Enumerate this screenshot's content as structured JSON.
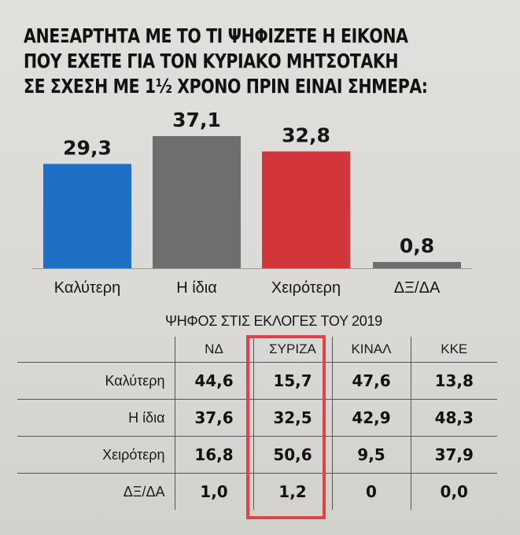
{
  "chart_data": [
    {
      "type": "bar",
      "title": "ΑΝΕΞΑΡΤΗΤΑ ΜΕ ΤΟ ΤΙ ΨΗΦΙΖΕΤΕ Η ΕΙΚΟΝΑ ΠΟΥ ΕΧΕΤΕ ΓΙΑ ΤΟΝ ΚΥΡΙΑΚΟ ΜΗΤΣΟΤΑΚΗ ΣΕ ΣΧΕΣΗ ΜΕ 1½ ΧΡΟΝΟ ΠΡΙΝ ΕΙΝΑΙ ΣΗΜΕΡΑ:",
      "title_lines": [
        "ΑΝΕΞΑΡΤΗΤΑ ΜΕ ΤΟ ΤΙ ΨΗΦΙΖΕΤΕ Η ΕΙΚΟΝΑ",
        "ΠΟΥ ΕΧΕΤΕ ΓΙΑ ΤΟΝ ΚΥΡΙΑΚΟ ΜΗΤΣΟΤΑΚΗ",
        "ΣΕ ΣΧΕΣΗ ΜΕ 1½ ΧΡΟΝΟ ΠΡΙΝ ΕΙΝΑΙ ΣΗΜΕΡΑ:"
      ],
      "categories": [
        "Καλύτερη",
        "Η ίδια",
        "Χειρότερη",
        "ΔΞ/ΔΑ"
      ],
      "values": [
        29.3,
        37.1,
        32.8,
        0.8
      ],
      "value_labels": [
        "29,3",
        "37,1",
        "32,8",
        "0,8"
      ],
      "colors": [
        "#1f6fc4",
        "#6e6e6e",
        "#d2363a",
        "#6e6e6e"
      ],
      "xlabel": "",
      "ylabel": "",
      "ylim": [
        0,
        37.1
      ],
      "grid": false
    },
    {
      "type": "table",
      "title": "ΨΗΦΟΣ ΣΤΙΣ ΕΚΛΟΓΕΣ ΤΟΥ 2019",
      "columns": [
        "ΝΔ",
        "ΣΥΡΙΖΑ",
        "ΚΙΝΑΛ",
        "ΚΚΕ"
      ],
      "rows": [
        {
          "label": "Καλύτερη",
          "values": [
            "44,6",
            "15,7",
            "47,6",
            "13,8"
          ]
        },
        {
          "label": "Η ίδια",
          "values": [
            "37,6",
            "32,5",
            "42,9",
            "48,3"
          ]
        },
        {
          "label": "Χειρότερη",
          "values": [
            "16,8",
            "50,6",
            "9,5",
            "37,9"
          ]
        },
        {
          "label": "ΔΞ/ΔΑ",
          "values": [
            "1,0",
            "1,2",
            "0",
            "0,0"
          ]
        }
      ],
      "highlighted_column": "ΣΥΡΙΖΑ",
      "highlight_color": "#e0424a"
    }
  ]
}
